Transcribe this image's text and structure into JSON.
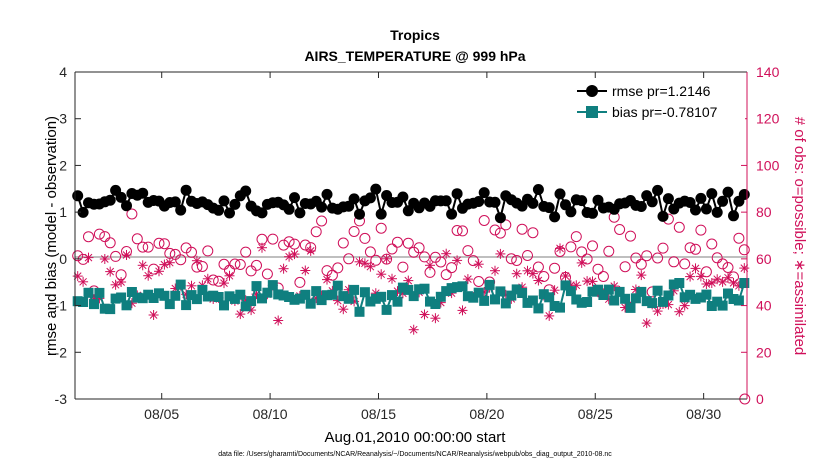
{
  "chart_data": {
    "type": "line",
    "title": "Tropics",
    "subtitle": "AIRS_TEMPERATURE @ 999 hPa",
    "xlabel": "Aug.01,2010 00:00:00 start",
    "ylabel_left": "rmse and bias (model - observation)",
    "ylabel_right": "# of obs: o=possible; ∗=assimilated",
    "xlim": [
      1,
      32
    ],
    "ylim_left": [
      -3,
      4
    ],
    "ylim_right": [
      0,
      140
    ],
    "x_ticks": [
      5,
      10,
      15,
      20,
      25,
      30
    ],
    "x_tick_labels": [
      "08/05",
      "08/10",
      "08/15",
      "08/20",
      "08/25",
      "08/30"
    ],
    "y_ticks_left": [
      -3,
      -2,
      -1,
      0,
      1,
      2,
      3,
      4
    ],
    "y_tick_labels_left": [
      "-3",
      "-2",
      "-1",
      "0",
      "1",
      "2",
      "3",
      "4"
    ],
    "y_ticks_right": [
      0,
      20,
      40,
      60,
      80,
      100,
      120,
      140
    ],
    "y_tick_labels_right": [
      "0",
      "20",
      "40",
      "60",
      "80",
      "100",
      "120",
      "140"
    ],
    "legend_position": "top-right",
    "series_rmse": {
      "name": "rmse pr=1.2146",
      "color": "#000000"
    },
    "series_bias": {
      "name": "bias pr=-0.78107",
      "color": "#0f7f7f"
    },
    "obs_color": "#d0105a",
    "zero_line_color": "#aaaaaa",
    "n_points_per_day": 4,
    "rmse_seed": 12,
    "bias_seed": 34,
    "possible_seed": 56,
    "assimilated_seed": 78,
    "rmse_mean": 1.2,
    "rmse_spread": 0.35,
    "bias_mean": -0.8,
    "bias_spread": 0.35,
    "possible_mean": 62,
    "possible_spread": 18,
    "assimilated_mean": 48,
    "assimilated_spread": 20,
    "last_possible": 0,
    "last_assimilated": 0
  },
  "footer": {
    "data_file": "data file: /Users/gharamti/Documents/NCAR/Reanalysis/~/Documents/NCAR/Reanalysis/webpub/obs_diag_output_2010-08.nc"
  }
}
